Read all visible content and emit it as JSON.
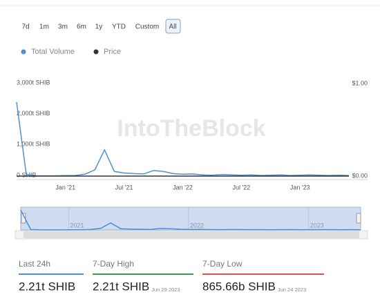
{
  "range_buttons": [
    "7d",
    "1m",
    "3m",
    "6m",
    "1y",
    "YTD",
    "Custom",
    "All"
  ],
  "watermark": "IntoTheBlock",
  "chart_data": {
    "type": "line",
    "x": [
      "2020-08",
      "2020-09",
      "2020-10",
      "2020-11",
      "2020-12",
      "2021-01",
      "2021-02",
      "2021-03",
      "2021-04",
      "2021-05",
      "2021-06",
      "2021-07",
      "2021-08",
      "2021-09",
      "2021-10",
      "2021-11",
      "2021-12",
      "2022-01",
      "2022-02",
      "2022-03",
      "2022-04",
      "2022-05",
      "2022-06",
      "2022-07",
      "2022-08",
      "2022-09",
      "2022-10",
      "2022-11",
      "2022-12",
      "2023-01",
      "2023-02",
      "2023-03",
      "2023-04",
      "2023-05",
      "2023-06"
    ],
    "series": [
      {
        "name": "Total Volume",
        "color": "#4a8fd4",
        "values": [
          2400,
          50,
          10,
          10,
          10,
          15,
          20,
          60,
          200,
          850,
          150,
          100,
          80,
          70,
          180,
          150,
          80,
          60,
          70,
          40,
          30,
          50,
          40,
          30,
          40,
          20,
          30,
          40,
          20,
          30,
          40,
          30,
          20,
          30,
          20
        ]
      },
      {
        "name": "Price",
        "color": "#333333",
        "axis": "y2",
        "values": [
          0,
          0,
          0,
          0,
          0,
          0,
          0,
          0,
          0,
          0,
          0,
          0,
          0,
          0,
          0,
          0,
          0,
          0,
          0,
          0,
          0,
          0,
          0,
          0,
          0,
          0,
          0,
          0,
          0,
          0,
          0,
          0,
          0,
          0,
          0
        ]
      }
    ],
    "xlim": [
      "2020-08",
      "2023-06"
    ],
    "xticks": [
      {
        "value": "2021-01",
        "label": "Jan '21"
      },
      {
        "value": "2021-07",
        "label": "Jul '21"
      },
      {
        "value": "2022-01",
        "label": "Jan '22"
      },
      {
        "value": "2022-07",
        "label": "Jul '22"
      },
      {
        "value": "2023-01",
        "label": "Jan '23"
      }
    ],
    "ylim": [
      0,
      3000
    ],
    "yticks": [
      {
        "value": 0,
        "label": "0 SHIB"
      },
      {
        "value": 1000,
        "label": "1,000t SHIB"
      },
      {
        "value": 2000,
        "label": "2,000t SHIB"
      },
      {
        "value": 3000,
        "label": "3,000t SHIB"
      }
    ],
    "y2lim": [
      0,
      1
    ],
    "y2ticks": [
      {
        "value": 0,
        "label": "$0.00"
      },
      {
        "value": 1,
        "label": "$1.00"
      }
    ],
    "grid": false
  },
  "navigator": {
    "labels": [
      {
        "value": "2021-01",
        "label": "2021"
      },
      {
        "value": "2022-01",
        "label": "2022"
      },
      {
        "value": "2023-01",
        "label": "2023"
      }
    ]
  },
  "stats": [
    {
      "label": "Last 24h",
      "value": "2.21t SHIB",
      "color": "#4a8fd4"
    },
    {
      "label": "7-Day High",
      "value": "2.21t SHIB",
      "date": "Jun 29 2023",
      "color": "#3a9a4a"
    },
    {
      "label": "7-Day Low",
      "value": "865.66b SHIB",
      "date": "Jun 24 2023",
      "color": "#d9534f"
    }
  ]
}
